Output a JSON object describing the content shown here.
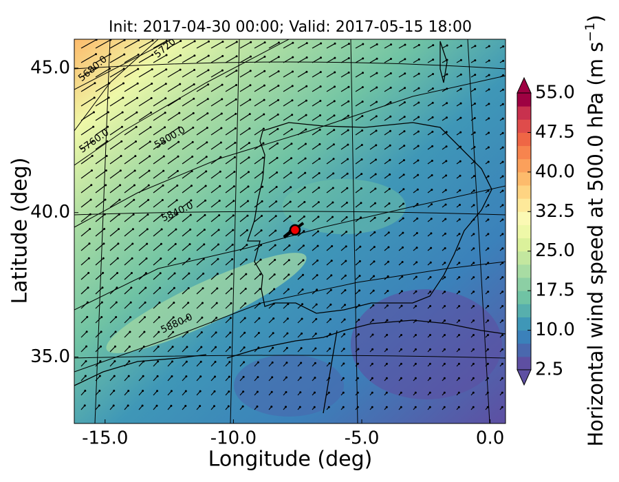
{
  "title": "Init: 2017-04-30 00:00; Valid: 2017-05-15 18:00",
  "x_axis": {
    "label": "Longitude (deg)",
    "range": [
      -16.2,
      0.6
    ],
    "ticks": [
      {
        "value": -15,
        "label": "-15.0"
      },
      {
        "value": -10,
        "label": "-10.0"
      },
      {
        "value": -5,
        "label": "-5.0"
      },
      {
        "value": 0,
        "label": "0.0"
      }
    ]
  },
  "y_axis": {
    "label": "Latitude (deg)",
    "range": [
      32.7,
      46.0
    ],
    "ticks": [
      {
        "value": 35,
        "label": "35.0"
      },
      {
        "value": 40,
        "label": "40.0"
      },
      {
        "value": 45,
        "label": "45.0"
      }
    ]
  },
  "colorbar": {
    "label": "Horizontal wind speed at 500.0 hPa (m s",
    "label_exponent": "−1",
    "label_end": ")",
    "range": [
      2.5,
      55
    ],
    "ticks": [
      2.5,
      {
        "value": 10,
        "label": "10.0"
      },
      17.5,
      {
        "value": 25,
        "label": "25.0"
      },
      32.5,
      {
        "value": 40,
        "label": "40.0"
      },
      47.5,
      {
        "value": 55,
        "label": "55.0"
      }
    ],
    "colors": [
      "#5e4fa2",
      "#4a68ae",
      "#3b81ba",
      "#3f97b7",
      "#57afad",
      "#70c3a4",
      "#8ccfa4",
      "#a8dca3",
      "#c3e79f",
      "#dbf19b",
      "#eef8a8",
      "#fbf9b4",
      "#fee99a",
      "#fed482",
      "#fdbb6c",
      "#fba05b",
      "#f7844e",
      "#ef6645",
      "#df4c4b",
      "#c8314e",
      "#9e0142"
    ]
  },
  "contour_labels": [
    "5680.0",
    "5720",
    "5760.0",
    "5800.0",
    "5840.0",
    "5880.0"
  ],
  "marker": {
    "lon": -7.6,
    "lat": 39.4
  }
}
